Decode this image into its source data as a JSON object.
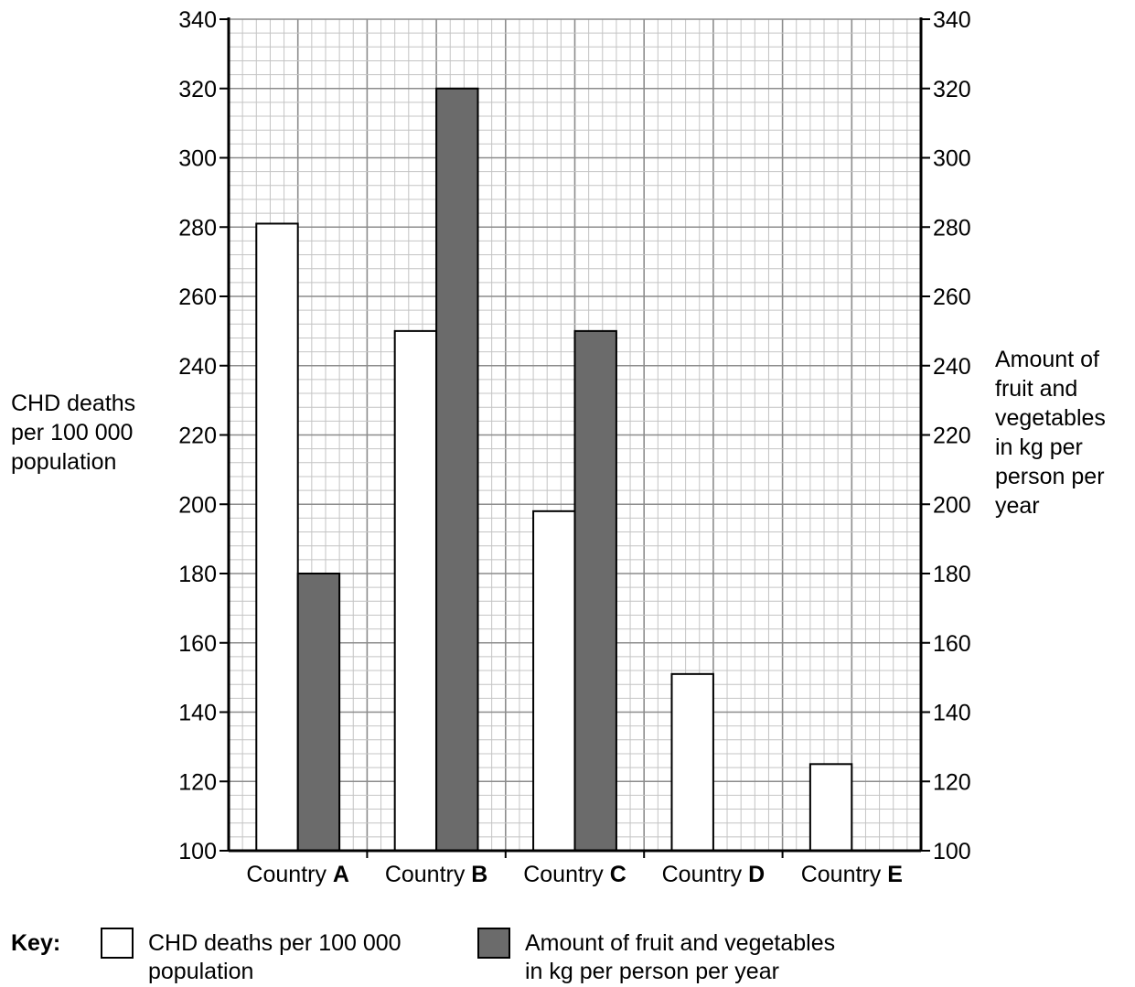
{
  "chart_data": {
    "type": "bar",
    "categories": [
      {
        "prefix": "Country",
        "letter": "A"
      },
      {
        "prefix": "Country",
        "letter": "B"
      },
      {
        "prefix": "Country",
        "letter": "C"
      },
      {
        "prefix": "Country",
        "letter": "D"
      },
      {
        "prefix": "Country",
        "letter": "E"
      }
    ],
    "series": [
      {
        "name": "CHD deaths per 100 000 population",
        "values": [
          281,
          250,
          198,
          151,
          125
        ],
        "color": "#ffffff",
        "axis": "left"
      },
      {
        "name": "Amount of fruit and vegetables in kg per person per year",
        "values": [
          180,
          320,
          null,
          null,
          null
        ],
        "color": "#6b6b6b",
        "axis": "right"
      }
    ],
    "series_note_values_C": 250,
    "ylabel_left": "CHD deaths per 100 000 population",
    "ylabel_right": "Amount of fruit and vegetables in kg per person per year",
    "ylim": [
      100,
      340
    ],
    "yticks": [
      100,
      120,
      140,
      160,
      180,
      200,
      220,
      240,
      260,
      280,
      300,
      320,
      340
    ],
    "grid": true,
    "legend_position": "bottom"
  },
  "key": {
    "title": "Key:",
    "item_a_line1": "CHD deaths per 100 000",
    "item_a_line2": "population",
    "item_b_line1": "Amount of fruit and vegetables",
    "item_b_line2": "in kg per person per year",
    "color_a": "#ffffff",
    "color_b": "#6b6b6b"
  },
  "axis_text": {
    "left_line1": "CHD deaths",
    "left_line2": "per 100 000",
    "left_line3": "population",
    "right_line1": "Amount of",
    "right_line2": "fruit and",
    "right_line3": "vegetables",
    "right_line4": "in kg per",
    "right_line5": "person per",
    "right_line6": "year"
  }
}
